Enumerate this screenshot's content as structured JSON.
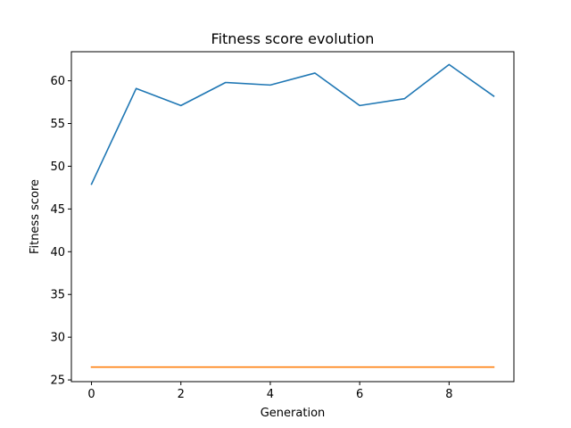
{
  "chart_data": {
    "type": "line",
    "title": "Fitness score evolution",
    "xlabel": "Generation",
    "ylabel": "Fitness score",
    "xlim": [
      -0.45,
      9.45
    ],
    "ylim": [
      24.8,
      63.4
    ],
    "xticks": [
      0,
      2,
      4,
      6,
      8
    ],
    "yticks": [
      25,
      30,
      35,
      40,
      45,
      50,
      55,
      60
    ],
    "x": [
      0,
      1,
      2,
      3,
      4,
      5,
      6,
      7,
      8,
      9
    ],
    "grid": false,
    "series": [
      {
        "color": "#1f77b4",
        "values": [
          47.9,
          59.1,
          57.1,
          59.8,
          59.5,
          60.9,
          57.1,
          57.9,
          61.9,
          58.2
        ]
      },
      {
        "color": "#ff7f0e",
        "values": [
          26.5,
          26.5,
          26.5,
          26.5,
          26.5,
          26.5,
          26.5,
          26.5,
          26.5,
          26.5
        ]
      }
    ]
  }
}
